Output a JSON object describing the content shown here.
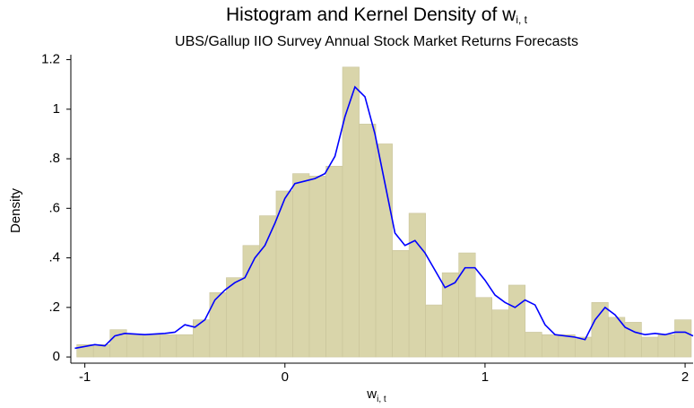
{
  "chart_data": {
    "type": "histogram",
    "title": "Histogram and Kernel Density of w",
    "title_sub": "i, t",
    "subtitle": "UBS/Gallup IIO Survey Annual Stock Market Returns Forecasts",
    "x_label": "w",
    "x_label_sub": "i, t",
    "y_label": "Density",
    "bins": [
      -1.04,
      -0.957,
      -0.874,
      -0.791,
      -0.708,
      -0.625,
      -0.542,
      -0.459,
      -0.376,
      -0.293,
      -0.21,
      -0.127,
      -0.044,
      0.039,
      0.122,
      0.205,
      0.288,
      0.371,
      0.454,
      0.537,
      0.62,
      0.703,
      0.786,
      0.869,
      0.952,
      1.035,
      1.118,
      1.201,
      1.284,
      1.367,
      1.45,
      1.533,
      1.616,
      1.699,
      1.782,
      1.865,
      1.948,
      2.031
    ],
    "values": [
      0.05,
      0.05,
      0.11,
      0.09,
      0.09,
      0.09,
      0.09,
      0.15,
      0.26,
      0.32,
      0.45,
      0.57,
      0.67,
      0.74,
      0.73,
      0.77,
      1.17,
      0.94,
      0.86,
      0.43,
      0.58,
      0.21,
      0.34,
      0.42,
      0.24,
      0.19,
      0.29,
      0.1,
      0.09,
      0.09,
      0.08,
      0.22,
      0.16,
      0.14,
      0.08,
      0.09,
      0.15
    ],
    "color": "#d9d5aa",
    "line": {
      "color": "#0000ff",
      "x": [
        -1.05,
        -0.95,
        -0.9,
        -0.85,
        -0.8,
        -0.7,
        -0.6,
        -0.55,
        -0.5,
        -0.45,
        -0.4,
        -0.35,
        -0.3,
        -0.25,
        -0.2,
        -0.15,
        -0.1,
        -0.05,
        0,
        0.05,
        0.1,
        0.15,
        0.2,
        0.25,
        0.3,
        0.35,
        0.4,
        0.45,
        0.5,
        0.55,
        0.6,
        0.65,
        0.7,
        0.75,
        0.8,
        0.85,
        0.9,
        0.95,
        1.0,
        1.05,
        1.1,
        1.15,
        1.2,
        1.25,
        1.3,
        1.35,
        1.4,
        1.45,
        1.5,
        1.55,
        1.6,
        1.65,
        1.7,
        1.75,
        1.8,
        1.85,
        1.9,
        1.95,
        2.0,
        2.04
      ],
      "y": [
        0.035,
        0.05,
        0.045,
        0.085,
        0.095,
        0.09,
        0.095,
        0.1,
        0.13,
        0.12,
        0.15,
        0.23,
        0.27,
        0.3,
        0.32,
        0.4,
        0.45,
        0.54,
        0.64,
        0.7,
        0.71,
        0.72,
        0.74,
        0.81,
        0.97,
        1.09,
        1.05,
        0.9,
        0.7,
        0.5,
        0.45,
        0.47,
        0.42,
        0.35,
        0.28,
        0.3,
        0.36,
        0.36,
        0.31,
        0.25,
        0.22,
        0.2,
        0.23,
        0.21,
        0.13,
        0.09,
        0.085,
        0.08,
        0.07,
        0.15,
        0.2,
        0.17,
        0.12,
        0.1,
        0.09,
        0.095,
        0.09,
        0.1,
        0.1,
        0.085
      ]
    },
    "xlim": [
      -1.07,
      2.04
    ],
    "ylim": [
      -0.025,
      1.22
    ],
    "xticks": [
      -1,
      0,
      1,
      2
    ],
    "yticks": [
      0,
      {
        "value": 0.2,
        "label": ".2"
      },
      {
        "value": 0.4,
        "label": ".4"
      },
      {
        "value": 0.6,
        "label": ".6"
      },
      {
        "value": 0.8,
        "label": ".8"
      },
      1,
      1.2
    ]
  }
}
